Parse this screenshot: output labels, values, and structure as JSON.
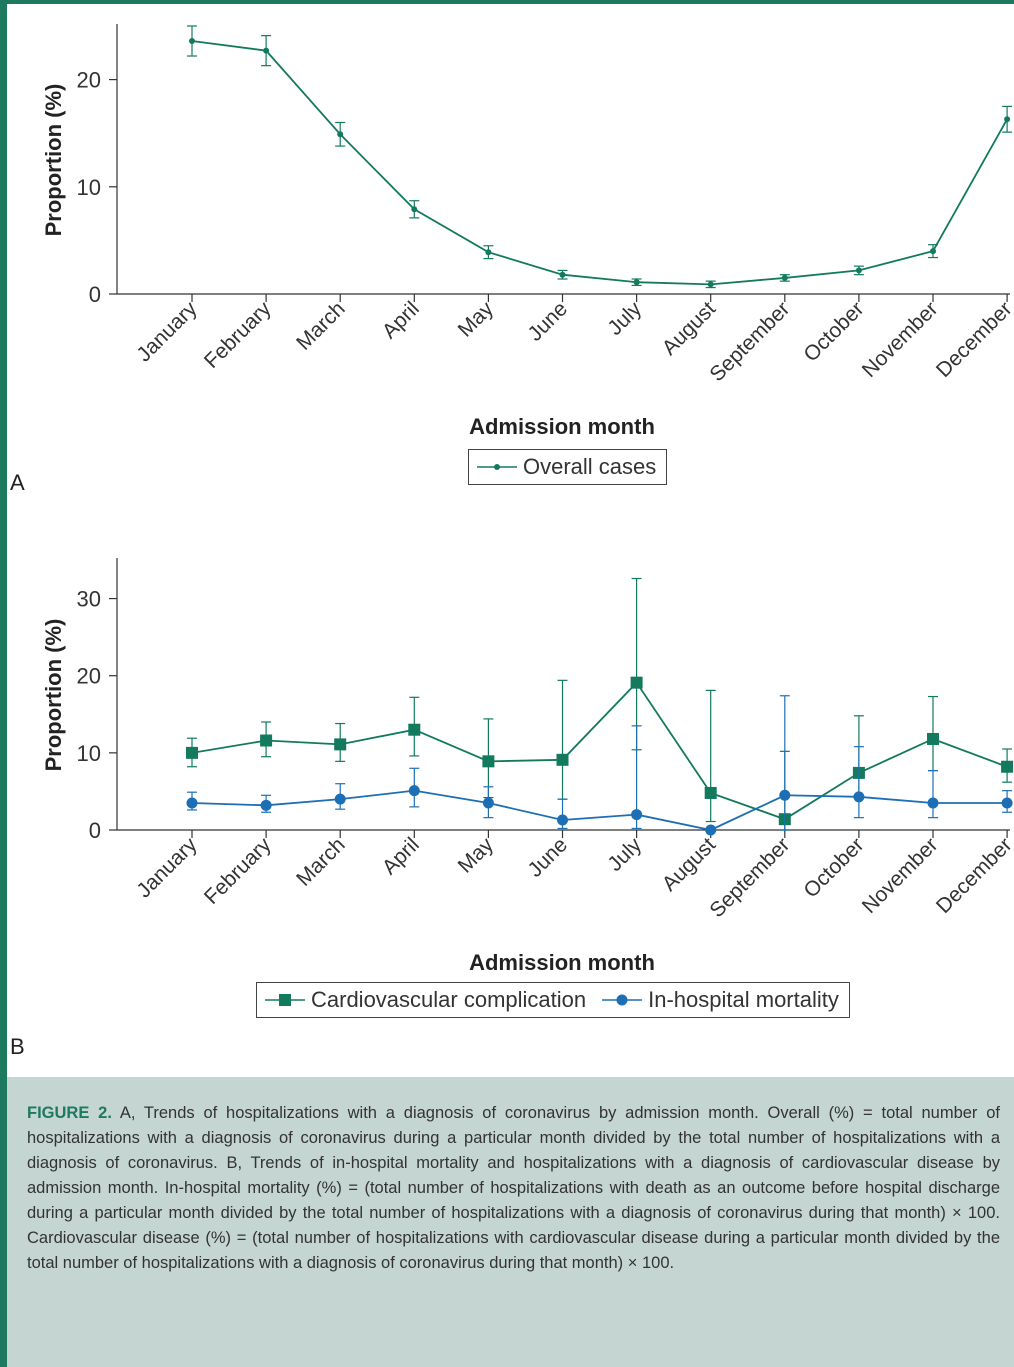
{
  "figure": {
    "caption_label": "FIGURE 2.",
    "caption_text": "A, Trends of hospitalizations with a diagnosis of coronavirus by admission month. Overall (%) = total number of hospitalizations with a diagnosis of coronavirus during a particular month divided by the total number of hospitalizations with a diagnosis of coronavirus. B, Trends of in-hospital mortality and hospitalizations with a diagnosis of cardiovascular disease by admission month. In-hospital mortality (%) = (total number of hospitalizations with death as an outcome before hospital discharge during a particular month divided by the total number of hospitalizations with a diagnosis of coronavirus during that month) × 100. Cardiovascular disease (%) = (total number of hospitalizations with cardiovascular disease during a particular month divided by the total number of hospitalizations with a diagnosis of coronavirus during that month) × 100.",
    "colors": {
      "frame": "#1e7a5e",
      "caption_background": "#c4d5d2",
      "green": "#137a5e",
      "blue": "#1d6fb5"
    }
  },
  "chart_data": [
    {
      "panel_label": "A",
      "type": "line",
      "xlabel": "Admission month",
      "ylabel": "Proportion (%)",
      "ylim": [
        0,
        25
      ],
      "yticks": [
        0,
        10,
        20
      ],
      "grid": false,
      "legend_position": "bottom-center",
      "categories": [
        "January",
        "February",
        "March",
        "April",
        "May",
        "June",
        "July",
        "August",
        "September",
        "October",
        "November",
        "December"
      ],
      "series": [
        {
          "name": "Overall cases",
          "marker": "dot",
          "color": "#137a5e",
          "values": [
            23.6,
            22.7,
            14.9,
            7.9,
            3.9,
            1.8,
            1.1,
            0.9,
            1.5,
            2.2,
            4.0,
            16.3
          ],
          "error_low": [
            22.2,
            21.3,
            13.8,
            7.1,
            3.3,
            1.4,
            0.8,
            0.6,
            1.2,
            1.8,
            3.4,
            15.1
          ],
          "error_high": [
            25.0,
            24.1,
            16.0,
            8.7,
            4.5,
            2.2,
            1.4,
            1.2,
            1.8,
            2.6,
            4.6,
            17.5
          ]
        }
      ]
    },
    {
      "panel_label": "B",
      "type": "line",
      "xlabel": "Admission month",
      "ylabel": "Proportion (%)",
      "ylim": [
        0,
        35
      ],
      "yticks": [
        0,
        10,
        20,
        30
      ],
      "grid": false,
      "legend_position": "bottom-center",
      "categories": [
        "January",
        "February",
        "March",
        "April",
        "May",
        "June",
        "July",
        "August",
        "September",
        "October",
        "November",
        "December"
      ],
      "series": [
        {
          "name": "Cardiovascular complication",
          "marker": "square",
          "color": "#137a5e",
          "values": [
            10.0,
            11.6,
            11.1,
            13.0,
            8.9,
            9.1,
            19.1,
            4.8,
            1.4,
            7.4,
            11.8,
            8.2
          ],
          "error_low": [
            8.2,
            9.5,
            8.9,
            9.6,
            4.2,
            4.0,
            10.4,
            1.1,
            0.0,
            4.5,
            7.7,
            6.2
          ],
          "error_high": [
            11.9,
            14.0,
            13.8,
            17.2,
            14.4,
            19.4,
            32.6,
            18.1,
            10.2,
            14.8,
            17.3,
            10.5
          ]
        },
        {
          "name": "In-hospital mortality",
          "marker": "circle",
          "color": "#1d6fb5",
          "values": [
            3.5,
            3.2,
            4.0,
            5.1,
            3.5,
            1.3,
            2.0,
            0.0,
            4.5,
            4.3,
            3.5,
            3.5
          ],
          "error_low": [
            2.6,
            2.3,
            2.7,
            3.0,
            1.6,
            0.2,
            0.2,
            0.0,
            0.0,
            1.6,
            1.6,
            2.3
          ],
          "error_high": [
            4.9,
            4.5,
            6.0,
            8.0,
            5.6,
            4.0,
            13.5,
            0.0,
            17.4,
            10.8,
            7.7,
            5.1
          ]
        }
      ]
    }
  ]
}
